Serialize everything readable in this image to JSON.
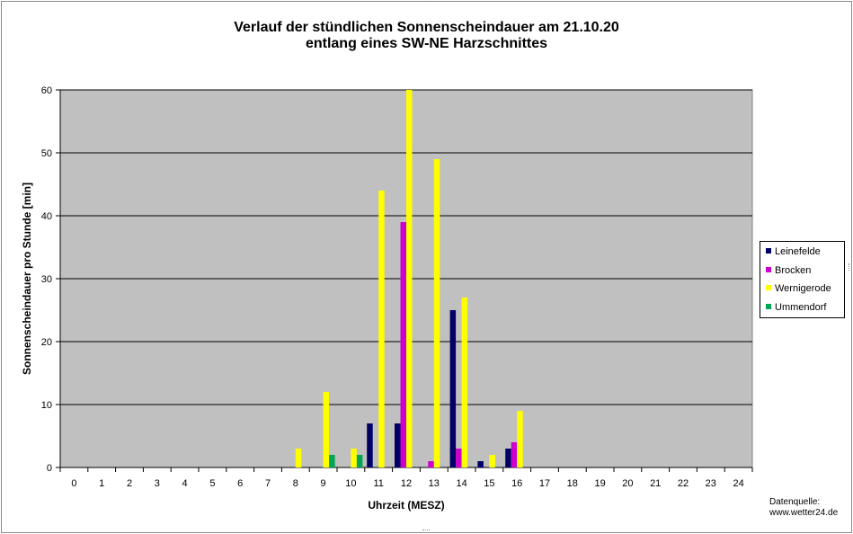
{
  "chart_data": {
    "type": "bar",
    "title": "Verlauf der stündlichen Sonnenscheindauer am 21.10.20",
    "subtitle": "entlang eines SW-NE Harzschnittes",
    "xlabel": "Uhrzeit (MESZ)",
    "ylabel": "Sonnenscheindauer pro Stunde [min]",
    "ylim": [
      0,
      60
    ],
    "yticks": [
      0,
      10,
      20,
      30,
      40,
      50,
      60
    ],
    "grid": true,
    "legend_position": "right",
    "categories": [
      "0",
      "1",
      "2",
      "3",
      "4",
      "5",
      "6",
      "7",
      "8",
      "9",
      "10",
      "11",
      "12",
      "13",
      "14",
      "15",
      "16",
      "17",
      "18",
      "19",
      "20",
      "21",
      "22",
      "23",
      "24"
    ],
    "series": [
      {
        "name": "Leinefelde",
        "color": "#000066",
        "values": [
          0,
          0,
          0,
          0,
          0,
          0,
          0,
          0,
          0,
          0,
          0,
          7,
          7,
          0,
          25,
          1,
          3,
          0,
          0,
          0,
          0,
          0,
          0,
          0,
          0
        ]
      },
      {
        "name": "Brocken",
        "color": "#cc00cc",
        "values": [
          0,
          0,
          0,
          0,
          0,
          0,
          0,
          0,
          0,
          0,
          0,
          0,
          39,
          1,
          3,
          0,
          4,
          0,
          0,
          0,
          0,
          0,
          0,
          0,
          0
        ]
      },
      {
        "name": "Wernigerode",
        "color": "#ffff00",
        "values": [
          0,
          0,
          0,
          0,
          0,
          0,
          0,
          0,
          3,
          12,
          3,
          44,
          60,
          49,
          27,
          2,
          9,
          0,
          0,
          0,
          0,
          0,
          0,
          0,
          0
        ]
      },
      {
        "name": "Ummendorf",
        "color": "#00a651",
        "values": [
          0,
          0,
          0,
          0,
          0,
          0,
          0,
          0,
          0,
          2,
          2,
          0,
          0,
          0,
          0,
          0,
          0,
          0,
          0,
          0,
          0,
          0,
          0,
          0,
          0
        ]
      }
    ],
    "plot_background": "#c0c0c0"
  },
  "source": {
    "line1": "Datenquelle:",
    "line2": "www.wetter24.de"
  }
}
